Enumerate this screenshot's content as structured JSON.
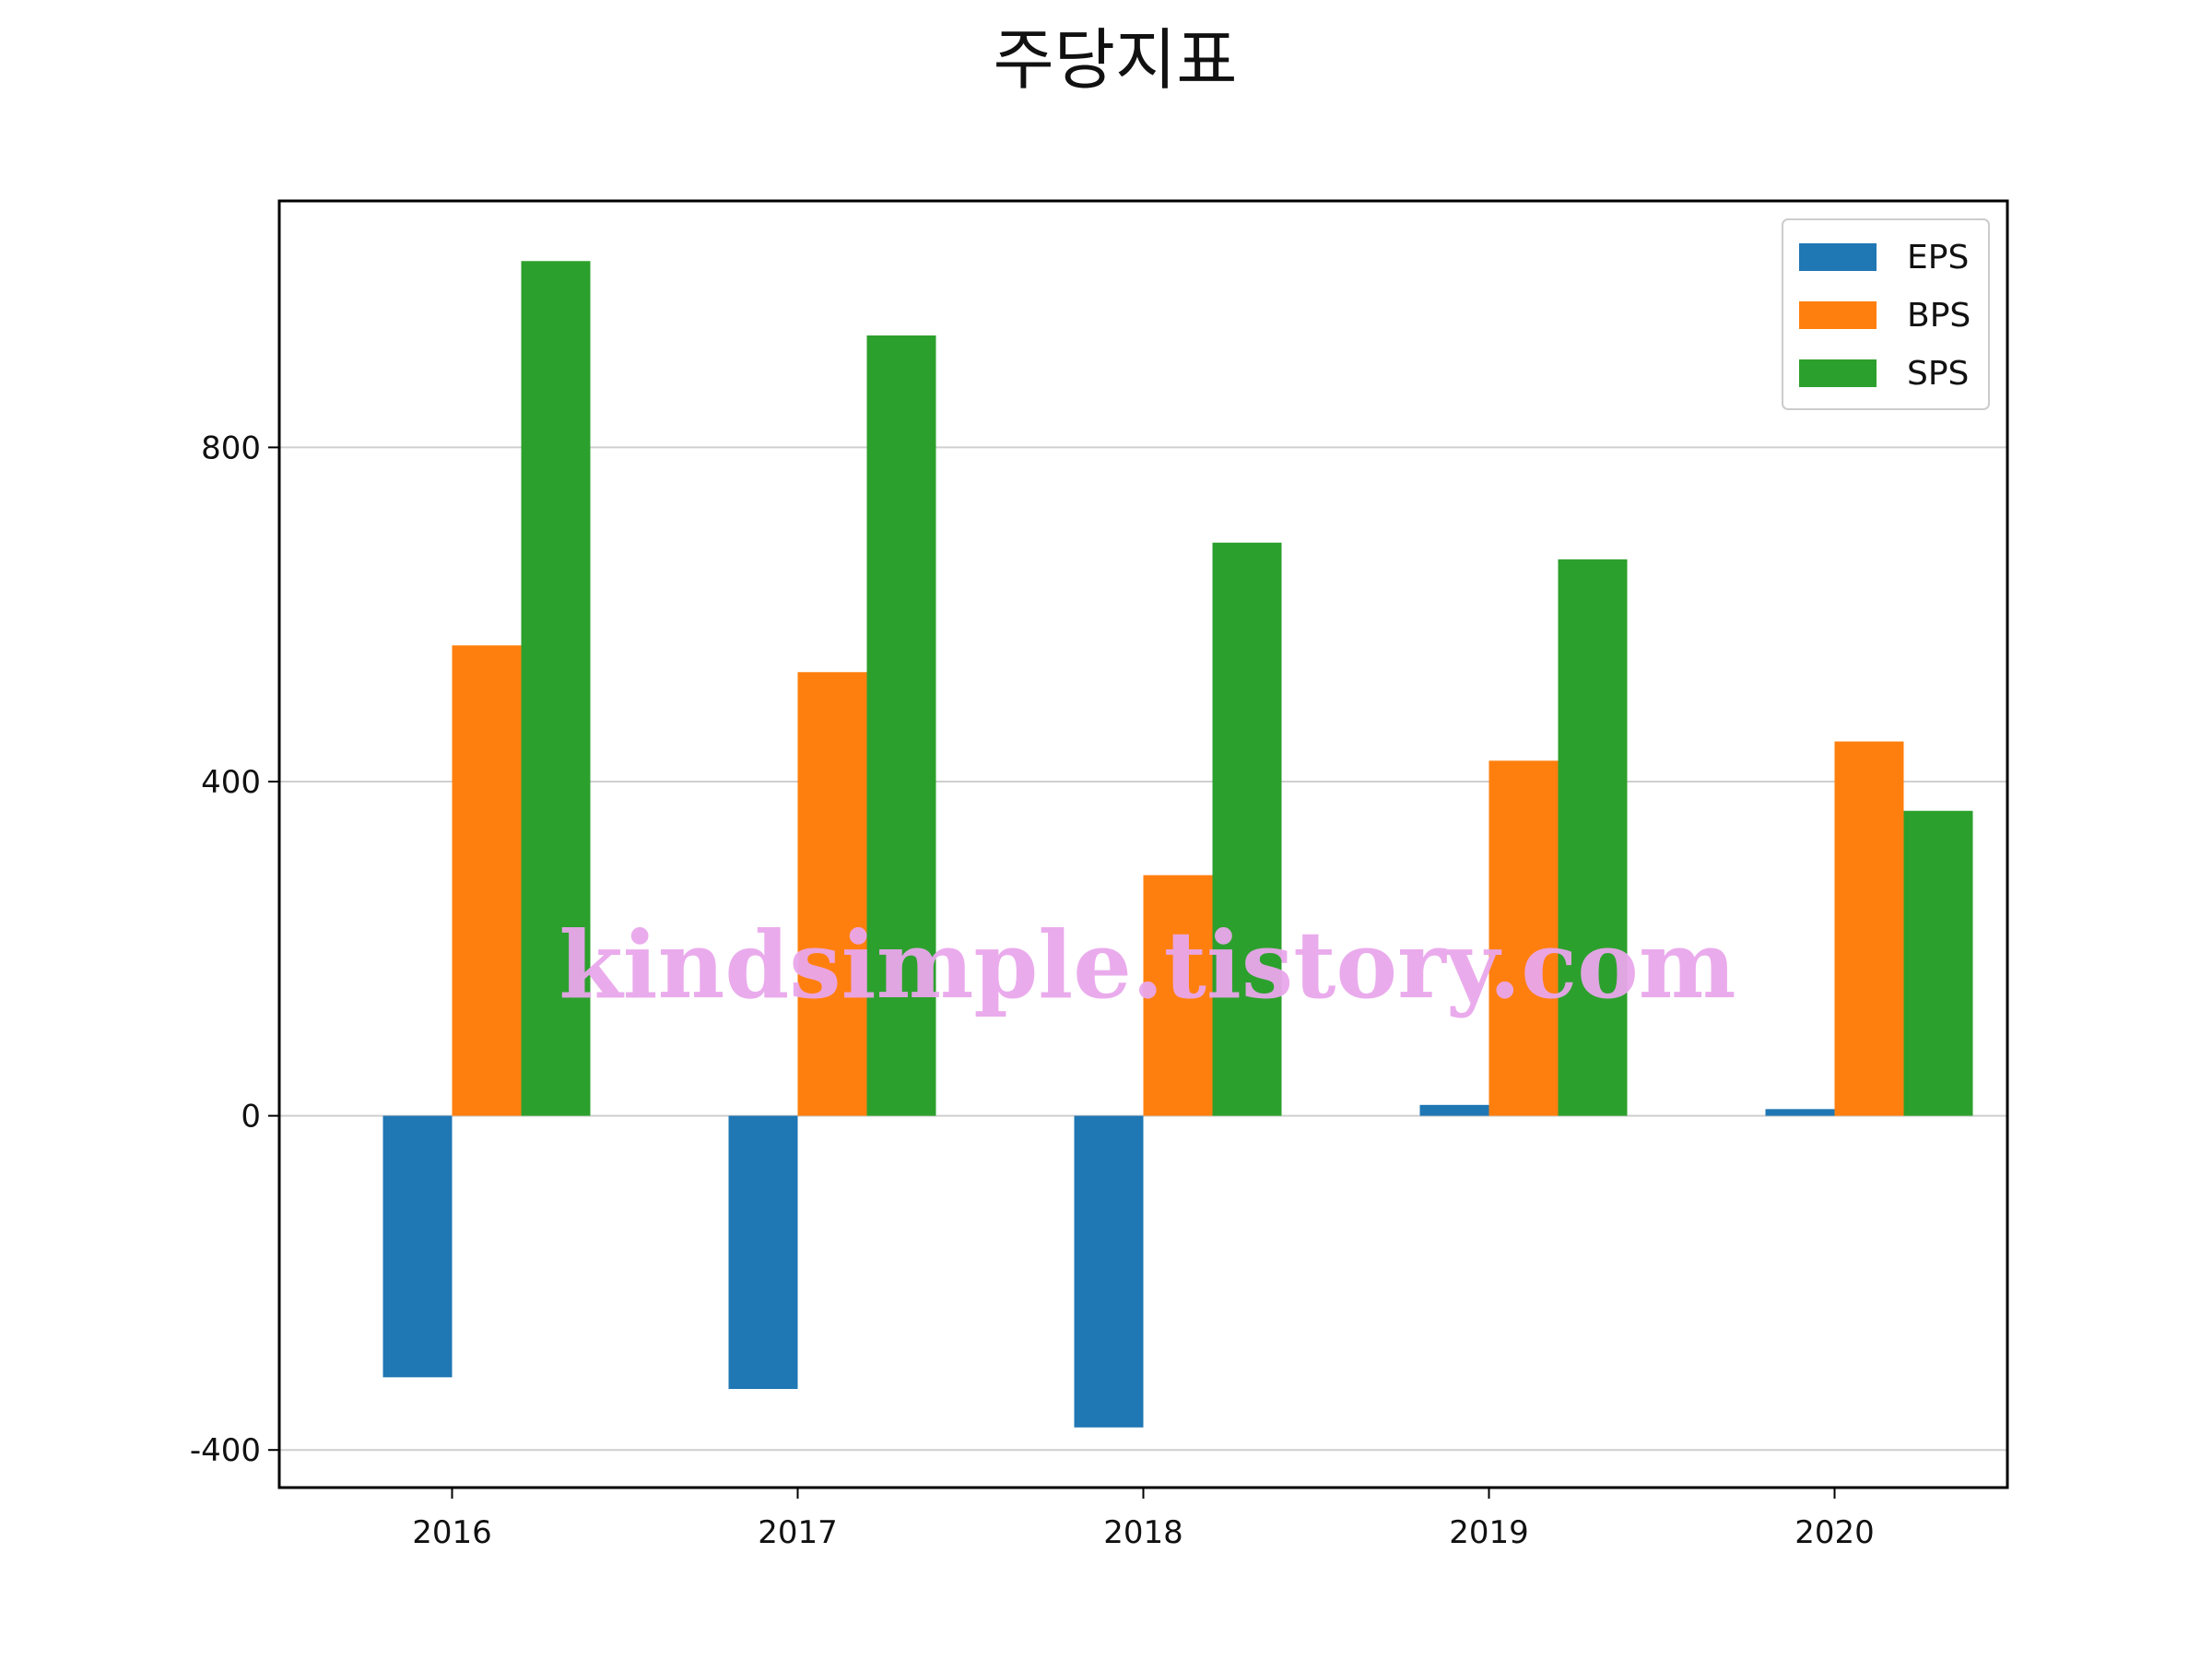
{
  "chart_data": {
    "type": "bar",
    "title": "주당지표",
    "xlabel": "",
    "ylabel": "",
    "categories": [
      "2016",
      "2017",
      "2018",
      "2019",
      "2020"
    ],
    "series": [
      {
        "name": "EPS",
        "color": "#1f77b4",
        "values": [
          -313,
          -327,
          -373,
          13,
          8
        ]
      },
      {
        "name": "BPS",
        "color": "#ff7f0e",
        "values": [
          563,
          531,
          288,
          425,
          448
        ]
      },
      {
        "name": "SPS",
        "color": "#2ca02c",
        "values": [
          1023,
          934,
          686,
          666,
          365
        ]
      }
    ],
    "ylim": [
      -445,
      1095
    ],
    "yticks": [
      -400,
      0,
      400,
      800
    ],
    "ytick_labels": [
      "-400",
      "0",
      "400",
      "800"
    ],
    "grid": "horizontal",
    "legend": "top-right"
  },
  "watermark": "kindsimple.tistory.com"
}
